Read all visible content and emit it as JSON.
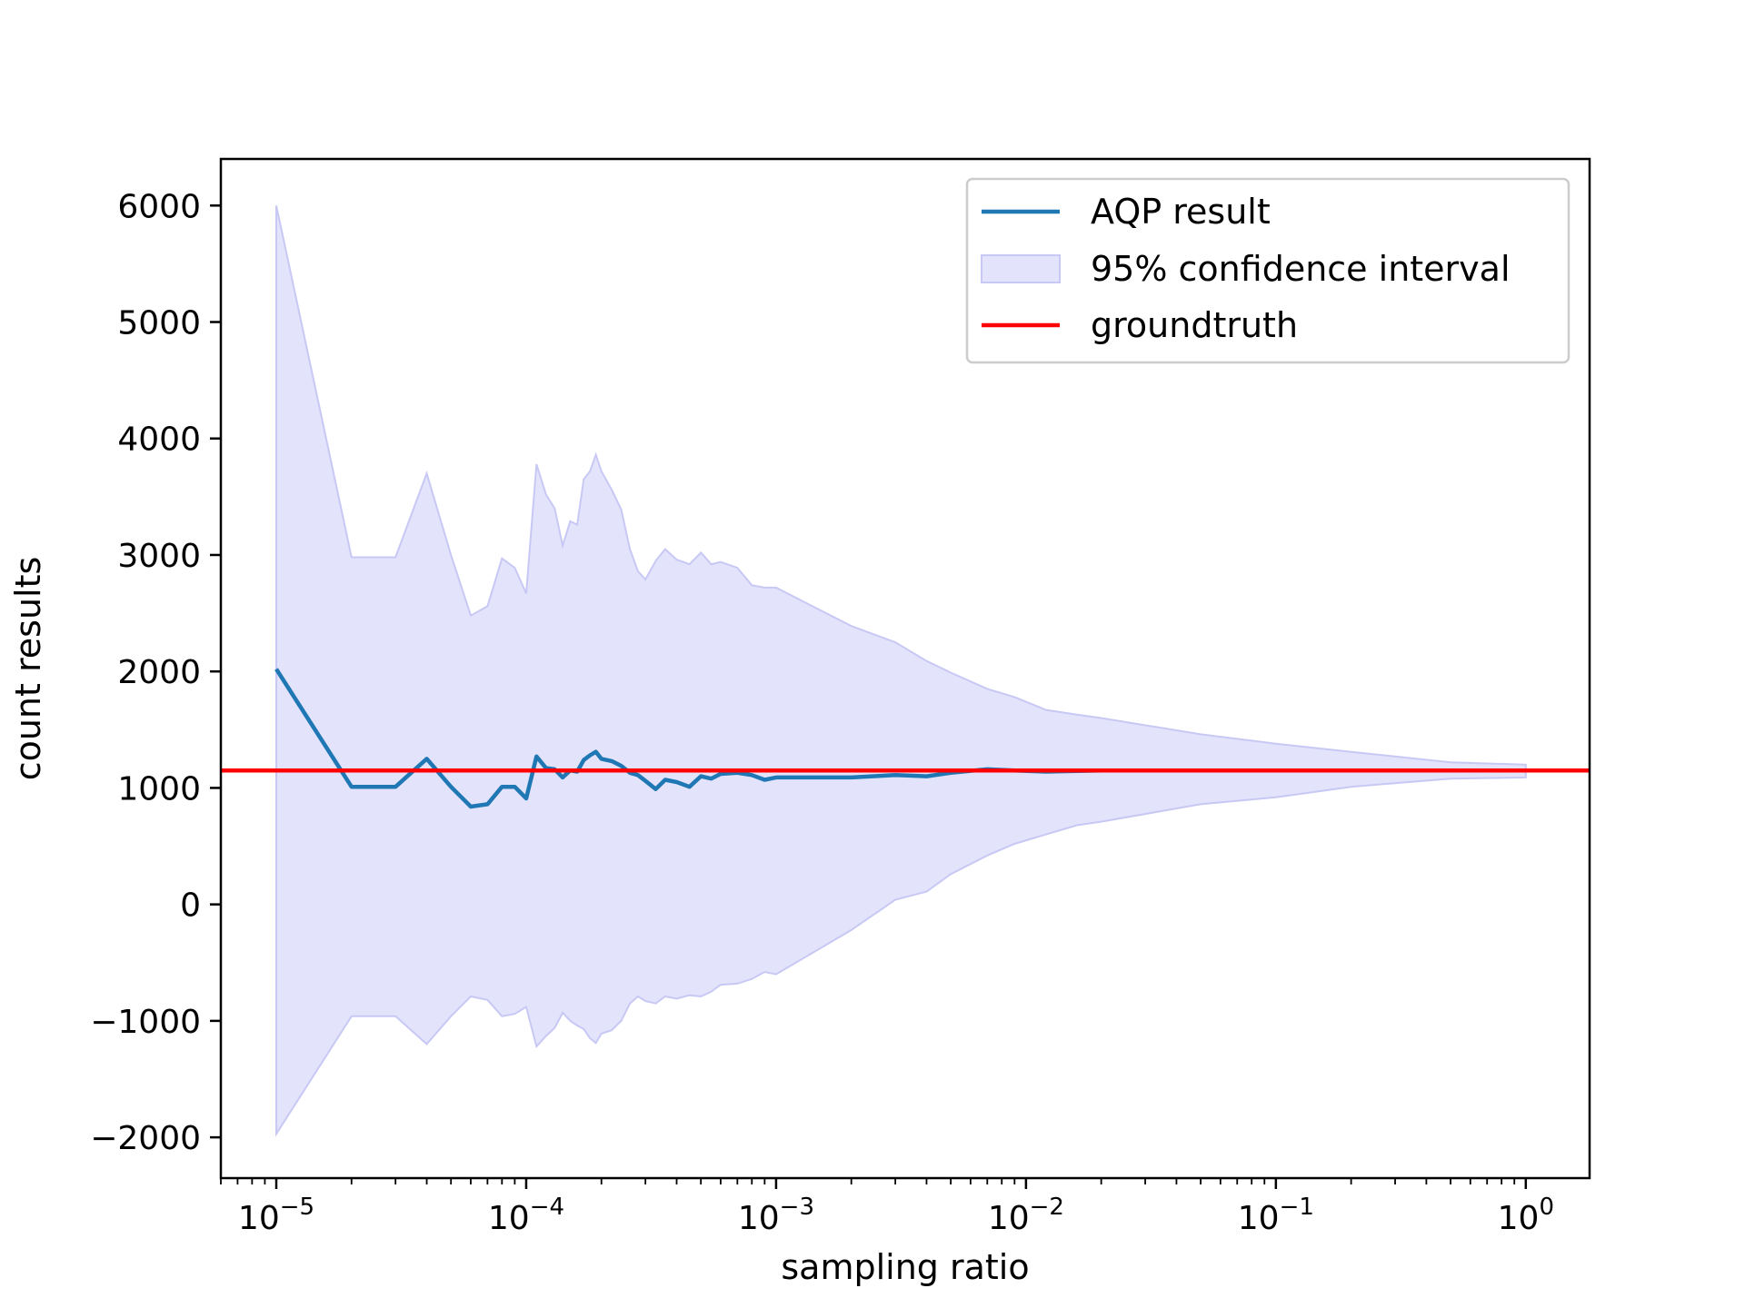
{
  "chart_data": {
    "type": "line",
    "xscale": "log",
    "xlabel": "sampling ratio",
    "ylabel": "count results",
    "xlim": [
      6e-06,
      1.8
    ],
    "ylim": [
      -2350,
      6400
    ],
    "grid": false,
    "legend_position": "top-right",
    "x_major_ticks": [
      {
        "value": 1e-05,
        "base": "10",
        "exp": "−5"
      },
      {
        "value": 0.0001,
        "base": "10",
        "exp": "−4"
      },
      {
        "value": 0.001,
        "base": "10",
        "exp": "−3"
      },
      {
        "value": 0.01,
        "base": "10",
        "exp": "−2"
      },
      {
        "value": 0.1,
        "base": "10",
        "exp": "−1"
      },
      {
        "value": 1,
        "base": "10",
        "exp": "0"
      }
    ],
    "y_ticks": [
      {
        "value": 6000,
        "label": "6000"
      },
      {
        "value": 5000,
        "label": "5000"
      },
      {
        "value": 4000,
        "label": "4000"
      },
      {
        "value": 3000,
        "label": "3000"
      },
      {
        "value": 2000,
        "label": "2000"
      },
      {
        "value": 1000,
        "label": "1000"
      },
      {
        "value": 0,
        "label": "0"
      },
      {
        "value": -1000,
        "label": "−1000"
      },
      {
        "value": -2000,
        "label": "−2000"
      }
    ],
    "groundtruth": 1150,
    "legend": [
      {
        "label": "AQP result",
        "kind": "line",
        "color": "#1f77b4"
      },
      {
        "label": "95% confidence interval",
        "kind": "patch",
        "color": "#e3e3fb",
        "edge": "#c8c8f5"
      },
      {
        "label": "groundtruth",
        "kind": "line",
        "color": "#ff0000"
      }
    ],
    "series": [
      {
        "name": "AQP result",
        "color": "#1f77b4",
        "x": [
          1e-05,
          2e-05,
          3e-05,
          4e-05,
          5e-05,
          6e-05,
          7e-05,
          8e-05,
          9e-05,
          0.0001,
          0.00011,
          0.00012,
          0.00013,
          0.00014,
          0.00015,
          0.00016,
          0.00017,
          0.00018,
          0.00019,
          0.0002,
          0.00022,
          0.00024,
          0.00026,
          0.00028,
          0.0003,
          0.00033,
          0.00036,
          0.0004,
          0.00045,
          0.0005,
          0.00055,
          0.0006,
          0.0007,
          0.0008,
          0.0009,
          0.001,
          0.002,
          0.003,
          0.004,
          0.005,
          0.007,
          0.009,
          0.012,
          0.016,
          0.02,
          0.05,
          0.1,
          0.2,
          0.5,
          1.0
        ],
        "y": [
          2020,
          1010,
          1010,
          1250,
          1010,
          840,
          860,
          1010,
          1010,
          910,
          1270,
          1170,
          1160,
          1090,
          1150,
          1140,
          1240,
          1280,
          1310,
          1250,
          1230,
          1190,
          1130,
          1110,
          1060,
          990,
          1070,
          1050,
          1010,
          1100,
          1080,
          1120,
          1130,
          1110,
          1070,
          1090,
          1090,
          1110,
          1100,
          1130,
          1160,
          1150,
          1140,
          1145,
          1150,
          1150,
          1150,
          1150,
          1150,
          1150
        ]
      },
      {
        "name": "groundtruth",
        "color": "#ff0000",
        "y_constant": 1150
      }
    ],
    "confidence_band": {
      "name": "95% confidence interval",
      "x": [
        1e-05,
        2e-05,
        3e-05,
        4e-05,
        5e-05,
        6e-05,
        7e-05,
        8e-05,
        9e-05,
        0.0001,
        0.00011,
        0.00012,
        0.00013,
        0.00014,
        0.00015,
        0.00016,
        0.00017,
        0.00018,
        0.00019,
        0.0002,
        0.00022,
        0.00024,
        0.00026,
        0.00028,
        0.0003,
        0.00033,
        0.00036,
        0.0004,
        0.00045,
        0.0005,
        0.00055,
        0.0006,
        0.0007,
        0.0008,
        0.0009,
        0.001,
        0.002,
        0.003,
        0.004,
        0.005,
        0.007,
        0.009,
        0.012,
        0.016,
        0.02,
        0.05,
        0.1,
        0.2,
        0.5,
        1.0
      ],
      "upper": [
        6000,
        2980,
        2980,
        3700,
        3000,
        2480,
        2560,
        2970,
        2890,
        2670,
        3780,
        3520,
        3400,
        3080,
        3290,
        3260,
        3650,
        3720,
        3860,
        3720,
        3560,
        3390,
        3050,
        2860,
        2790,
        2950,
        3050,
        2960,
        2920,
        3020,
        2920,
        2940,
        2890,
        2740,
        2720,
        2720,
        2390,
        2250,
        2090,
        1990,
        1850,
        1780,
        1670,
        1630,
        1600,
        1460,
        1380,
        1310,
        1220,
        1200
      ],
      "lower": [
        -1970,
        -960,
        -960,
        -1200,
        -960,
        -790,
        -820,
        -960,
        -940,
        -880,
        -1220,
        -1130,
        -1060,
        -930,
        -1000,
        -1040,
        -1070,
        -1150,
        -1190,
        -1110,
        -1080,
        -1000,
        -850,
        -790,
        -830,
        -850,
        -790,
        -810,
        -780,
        -790,
        -750,
        -690,
        -680,
        -640,
        -580,
        -600,
        -220,
        40,
        110,
        260,
        420,
        520,
        600,
        680,
        710,
        860,
        920,
        1010,
        1080,
        1090
      ]
    }
  }
}
